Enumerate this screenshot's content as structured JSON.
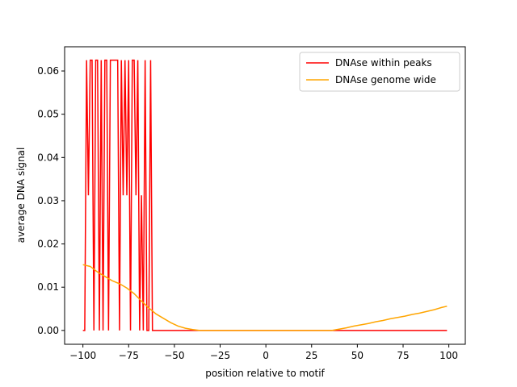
{
  "chart_data": {
    "type": "line",
    "xlabel": "position relative to motif",
    "ylabel": "average DNA signal",
    "xlim": [
      -110,
      109
    ],
    "ylim": [
      -0.0032,
      0.0656
    ],
    "xticks": [
      {
        "value": -100,
        "label": "−100"
      },
      {
        "value": -75,
        "label": "−75"
      },
      {
        "value": -50,
        "label": "−50"
      },
      {
        "value": -25,
        "label": "−25"
      },
      0,
      25,
      50,
      75,
      100
    ],
    "yticks": [
      {
        "value": 0,
        "label": "0.00"
      },
      {
        "value": 0.01,
        "label": "0.01"
      },
      {
        "value": 0.02,
        "label": "0.02"
      },
      {
        "value": 0.03,
        "label": "0.03"
      },
      {
        "value": 0.04,
        "label": "0.04"
      },
      {
        "value": 0.05,
        "label": "0.05"
      },
      {
        "value": 0.06,
        "label": "0.06"
      }
    ],
    "legend": "upper right",
    "series": [
      {
        "name": "DNAse within peaks",
        "color": "#ff0000",
        "x": [
          -100,
          -99,
          -98,
          -97,
          -96,
          -95,
          -94,
          -93,
          -92,
          -91,
          -90,
          -89,
          -88,
          -87,
          -86,
          -85,
          -84,
          -83,
          -82,
          -81,
          -80,
          -79,
          -78,
          -77,
          -76,
          -75,
          -74,
          -73,
          -72,
          -71,
          -70,
          -69,
          -68,
          -67,
          -66,
          -65,
          -64,
          -63,
          -62,
          99
        ],
        "values": [
          0,
          0,
          0.0625,
          0.03125,
          0.0625,
          0.0625,
          0,
          0.0625,
          0.0625,
          0,
          0.0625,
          0,
          0.0625,
          0.0625,
          0,
          0.0625,
          0.0625,
          0.0625,
          0.0625,
          0.0625,
          0,
          0.0625,
          0.03125,
          0.0625,
          0.03125,
          0.0625,
          0,
          0.0625,
          0.0625,
          0.03125,
          0.0625,
          0,
          0.03125,
          0,
          0.0625,
          0,
          0,
          0.0625,
          0,
          0
        ]
      },
      {
        "name": "DNAse genome wide",
        "color": "#ffa500",
        "x": [
          -100,
          -96,
          -92,
          -88,
          -84,
          -80,
          -76,
          -72,
          -68,
          -64,
          -60,
          -56,
          -52,
          -48,
          -44,
          -40,
          -36,
          -32,
          -28,
          -24,
          -20,
          -16,
          -12,
          -8,
          -4,
          0,
          4,
          8,
          12,
          16,
          20,
          24,
          28,
          32,
          36,
          40,
          44,
          48,
          52,
          56,
          60,
          64,
          68,
          72,
          76,
          80,
          84,
          88,
          92,
          96,
          99
        ],
        "values": [
          0.0152,
          0.0148,
          0.0135,
          0.0125,
          0.0115,
          0.0108,
          0.0098,
          0.0085,
          0.0068,
          0.0052,
          0.0038,
          0.0028,
          0.0018,
          0.001,
          0.0005,
          0.0002,
          0,
          0,
          0,
          0,
          0,
          0,
          0,
          0,
          0,
          0,
          0,
          0,
          0,
          0,
          0,
          0,
          0,
          0,
          0,
          0.0003,
          0.0006,
          0.001,
          0.0013,
          0.0016,
          0.002,
          0.0023,
          0.0027,
          0.003,
          0.0033,
          0.0037,
          0.004,
          0.0044,
          0.0048,
          0.0053,
          0.0056
        ]
      }
    ]
  }
}
